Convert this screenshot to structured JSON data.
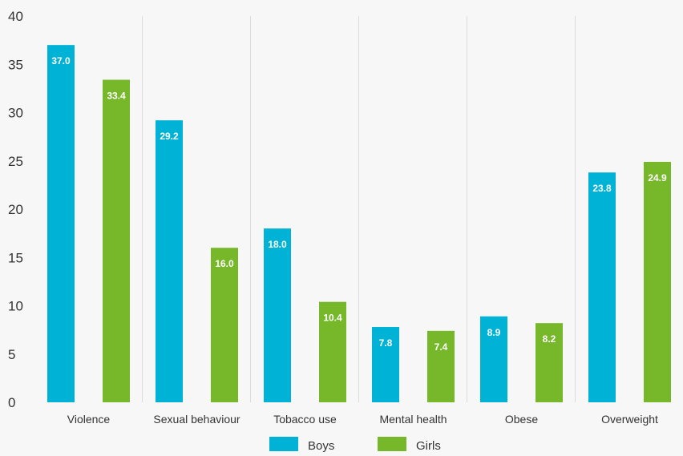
{
  "chart_data": {
    "type": "bar",
    "categories": [
      "Violence",
      "Sexual behaviour",
      "Tobacco use",
      "Mental health",
      "Obese",
      "Overweight"
    ],
    "series": [
      {
        "name": "Boys",
        "values": [
          37.0,
          29.2,
          18.0,
          7.8,
          8.9,
          23.8
        ],
        "color": "#00b3d6"
      },
      {
        "name": "Girls",
        "values": [
          33.4,
          16.0,
          10.4,
          7.4,
          8.2,
          24.9
        ],
        "color": "#76b82a"
      }
    ],
    "yticks": [
      0,
      5,
      10,
      15,
      20,
      25,
      30,
      35,
      40
    ],
    "ylim": [
      0,
      40
    ],
    "grid": "vertical separators between categories",
    "legend": "bottom-center"
  }
}
